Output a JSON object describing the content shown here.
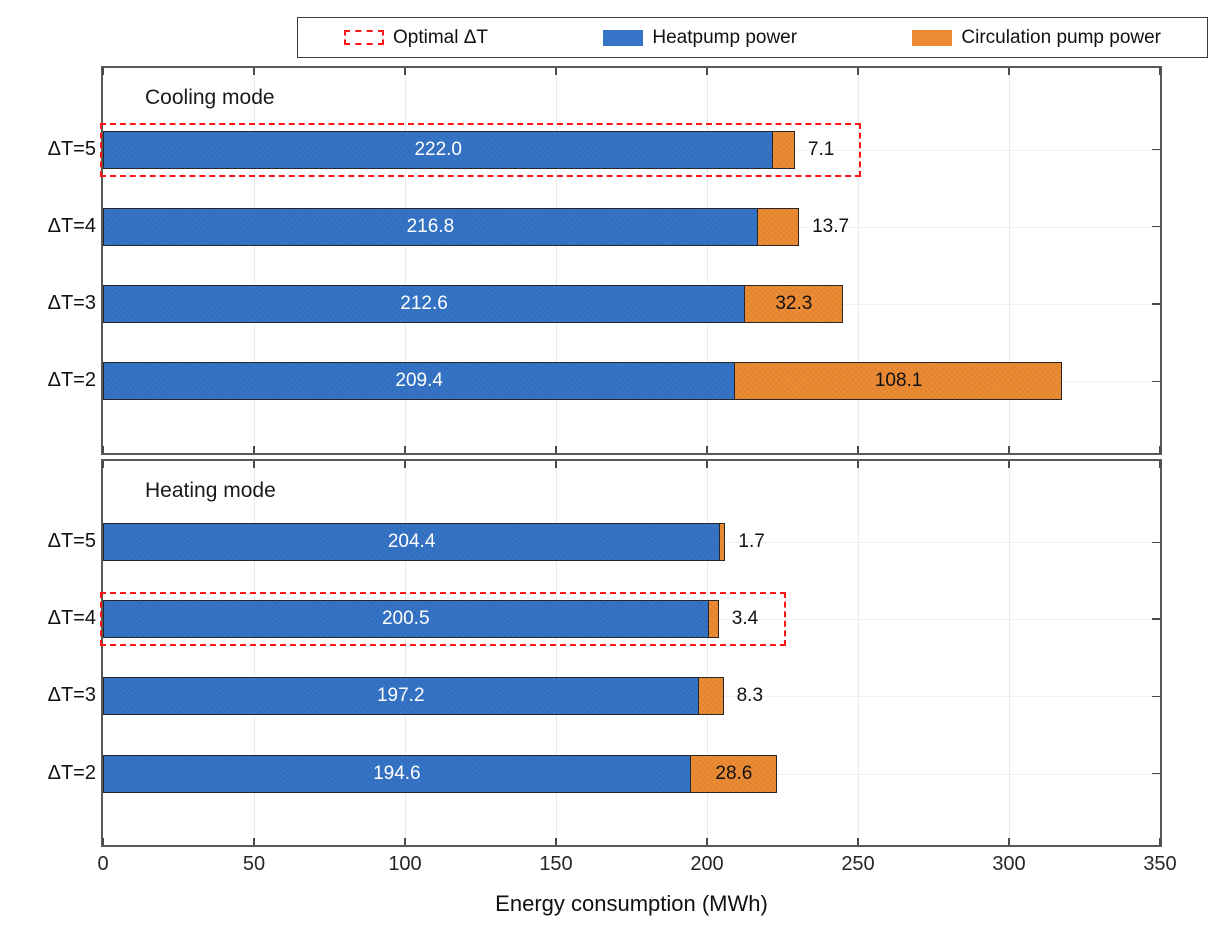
{
  "chart_data": {
    "type": "bar",
    "orientation": "horizontal",
    "stacked": true,
    "title": "",
    "xlabel": "Energy consumption (MWh)",
    "xlim": [
      0,
      350
    ],
    "xticks": [
      0,
      50,
      100,
      150,
      200,
      250,
      300,
      350
    ],
    "grid": "on",
    "legend_position": "top",
    "legend": [
      {
        "label": "Optimal ΔT",
        "style": "red-dashed-outline"
      },
      {
        "label": "Heatpump power",
        "style": "filled",
        "color": "#3574C6"
      },
      {
        "label": "Circulation pump power",
        "style": "filled",
        "color": "#EC8B33"
      }
    ],
    "series_names": [
      "Heatpump power",
      "Circulation pump power"
    ],
    "colors": {
      "heatpump": "#3574C6",
      "circulation": "#EC8B33",
      "optimal_box": "#FE1414",
      "bar_border": "#262626",
      "heatpump_value_text": "#FFFFFF",
      "circulation_value_text": "#111111"
    },
    "panels": [
      {
        "title": "Cooling mode",
        "rows": [
          {
            "category": "ΔT=5",
            "heatpump": 222.0,
            "circulation": 7.1,
            "hp_label": "222.0",
            "cp_label": "7.1",
            "cp_label_inside": false,
            "optimal": true,
            "optimal_box_end": 251
          },
          {
            "category": "ΔT=4",
            "heatpump": 216.8,
            "circulation": 13.7,
            "hp_label": "216.8",
            "cp_label": "13.7",
            "cp_label_inside": false,
            "optimal": false
          },
          {
            "category": "ΔT=3",
            "heatpump": 212.6,
            "circulation": 32.3,
            "hp_label": "212.6",
            "cp_label": "32.3",
            "cp_label_inside": true,
            "optimal": false
          },
          {
            "category": "ΔT=2",
            "heatpump": 209.4,
            "circulation": 108.1,
            "hp_label": "209.4",
            "cp_label": "108.1",
            "cp_label_inside": true,
            "optimal": false
          }
        ]
      },
      {
        "title": "Heating mode",
        "rows": [
          {
            "category": "ΔT=5",
            "heatpump": 204.4,
            "circulation": 1.7,
            "hp_label": "204.4",
            "cp_label": "1.7",
            "cp_label_inside": false,
            "optimal": false
          },
          {
            "category": "ΔT=4",
            "heatpump": 200.5,
            "circulation": 3.4,
            "hp_label": "200.5",
            "cp_label": "3.4",
            "cp_label_inside": false,
            "optimal": true,
            "optimal_box_end": 226
          },
          {
            "category": "ΔT=3",
            "heatpump": 197.2,
            "circulation": 8.3,
            "hp_label": "197.2",
            "cp_label": "8.3",
            "cp_label_inside": false,
            "optimal": false
          },
          {
            "category": "ΔT=2",
            "heatpump": 194.6,
            "circulation": 28.6,
            "hp_label": "194.6",
            "cp_label": "28.6",
            "cp_label_inside": true,
            "optimal": false
          }
        ]
      }
    ]
  }
}
